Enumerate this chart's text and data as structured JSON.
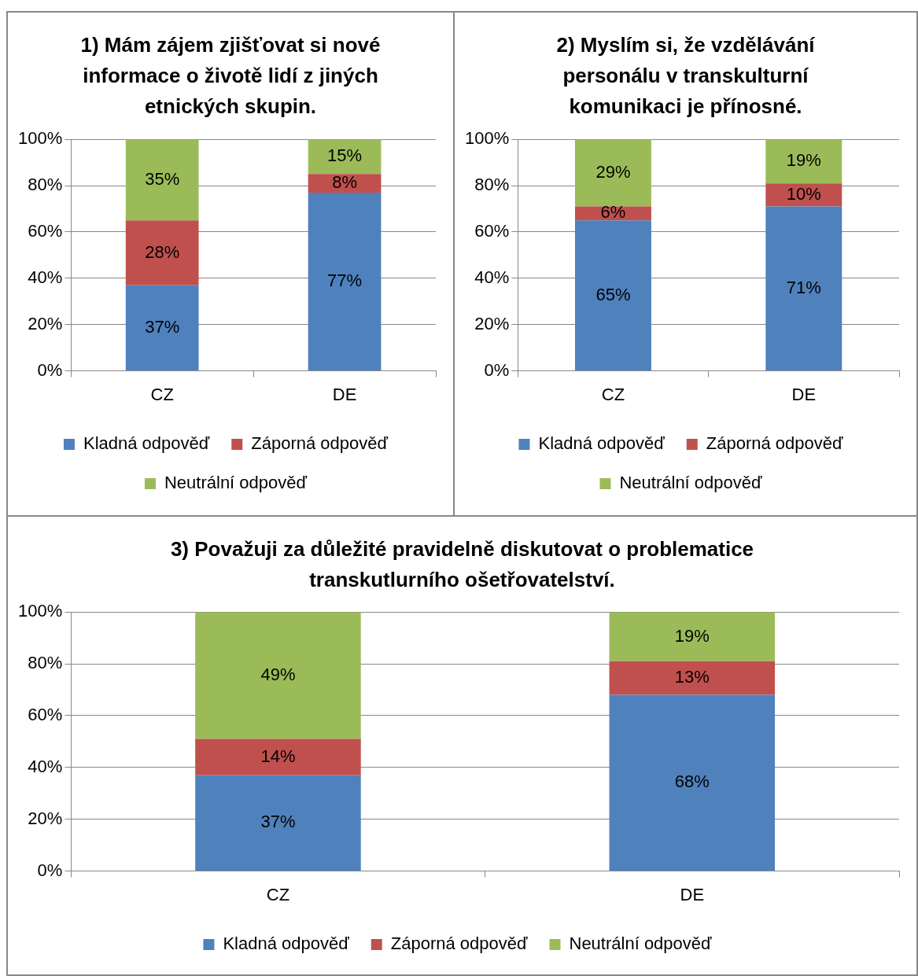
{
  "chart_data": [
    {
      "type": "bar",
      "title": "1) Mám zájem zjišťovat si nové informace o životě lidí z jiných etnických skupin.",
      "categories": [
        "CZ",
        "DE"
      ],
      "stacked": true,
      "ylim": [
        0,
        100
      ],
      "yticks": [
        {
          "value": 0,
          "label": "0%"
        },
        {
          "value": 20,
          "label": "20%"
        },
        {
          "value": 40,
          "label": "40%"
        },
        {
          "value": 60,
          "label": "60%"
        },
        {
          "value": 80,
          "label": "80%"
        },
        {
          "value": 100,
          "label": "100%"
        }
      ],
      "grid": "y",
      "legend": "bottom",
      "series": [
        {
          "name": "Kladná odpověď",
          "color": "#4f81bd",
          "values": [
            37,
            77
          ],
          "value_labels": [
            "37%",
            "77%"
          ]
        },
        {
          "name": "Záporná odpověď",
          "color": "#c0504d",
          "values": [
            28,
            8
          ],
          "value_labels": [
            "28%",
            "8%"
          ]
        },
        {
          "name": "Neutrální odpověď",
          "color": "#9bbb59",
          "values": [
            35,
            15
          ],
          "value_labels": [
            "35%",
            "15%"
          ]
        }
      ]
    },
    {
      "type": "bar",
      "title": "2) Myslím si, že vzdělávání personálu v transkulturní komunikaci je přínosné.",
      "categories": [
        "CZ",
        "DE"
      ],
      "stacked": true,
      "ylim": [
        0,
        100
      ],
      "yticks": [
        {
          "value": 0,
          "label": "0%"
        },
        {
          "value": 20,
          "label": "20%"
        },
        {
          "value": 40,
          "label": "40%"
        },
        {
          "value": 60,
          "label": "60%"
        },
        {
          "value": 80,
          "label": "80%"
        },
        {
          "value": 100,
          "label": "100%"
        }
      ],
      "grid": "y",
      "legend": "bottom",
      "series": [
        {
          "name": "Kladná odpověď",
          "color": "#4f81bd",
          "values": [
            65,
            71
          ],
          "value_labels": [
            "65%",
            "71%"
          ]
        },
        {
          "name": "Záporná odpověď",
          "color": "#c0504d",
          "values": [
            6,
            10
          ],
          "value_labels": [
            "6%",
            "10%"
          ]
        },
        {
          "name": "Neutrální odpověď",
          "color": "#9bbb59",
          "values": [
            29,
            19
          ],
          "value_labels": [
            "29%",
            "19%"
          ]
        }
      ]
    },
    {
      "type": "bar",
      "title": "3) Považuji za důležité pravidelně diskutovat o problematice transkutlurního ošetřovatelství.",
      "categories": [
        "CZ",
        "DE"
      ],
      "stacked": true,
      "ylim": [
        0,
        100
      ],
      "yticks": [
        {
          "value": 0,
          "label": "0%"
        },
        {
          "value": 20,
          "label": "20%"
        },
        {
          "value": 40,
          "label": "40%"
        },
        {
          "value": 60,
          "label": "60%"
        },
        {
          "value": 80,
          "label": "80%"
        },
        {
          "value": 100,
          "label": "100%"
        }
      ],
      "grid": "y",
      "legend": "bottom",
      "series": [
        {
          "name": "Kladná odpověď",
          "color": "#4f81bd",
          "values": [
            37,
            68
          ],
          "value_labels": [
            "37%",
            "68%"
          ]
        },
        {
          "name": "Záporná odpověď",
          "color": "#c0504d",
          "values": [
            14,
            13
          ],
          "value_labels": [
            "14%",
            "13%"
          ]
        },
        {
          "name": "Neutrální odpověď",
          "color": "#9bbb59",
          "values": [
            49,
            19
          ],
          "value_labels": [
            "49%",
            "19%"
          ]
        }
      ]
    }
  ]
}
